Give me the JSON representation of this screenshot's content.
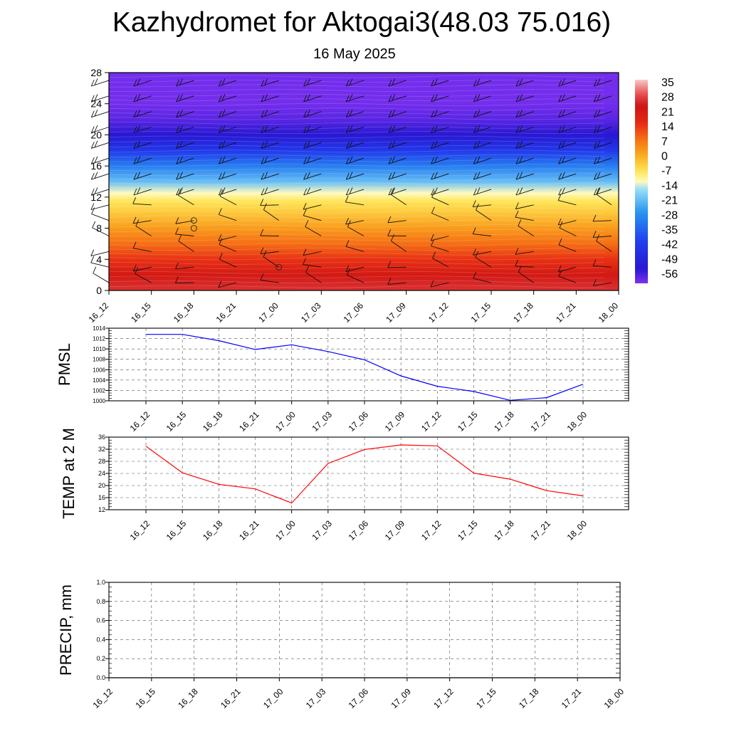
{
  "page": {
    "title": "Kazhydromet for Aktogai3(48.03 75.016)",
    "subtitle": "16 May 2025"
  },
  "chart_data": [
    {
      "type": "heatmap",
      "id": "cross-section",
      "x_ticks": [
        "16_12",
        "16_15",
        "16_18",
        "16_21",
        "17_00",
        "17_03",
        "17_06",
        "17_09",
        "17_12",
        "17_15",
        "17_18",
        "17_21",
        "18_00"
      ],
      "y_ticks": [
        0,
        4,
        8,
        12,
        16,
        20,
        24,
        28
      ],
      "ylim": [
        0,
        28
      ],
      "colorbar_labels": [
        "35",
        "28",
        "21",
        "14",
        "7",
        "0",
        "-7",
        "-14",
        "-21",
        "-28",
        "-35",
        "-42",
        "-49",
        "-56"
      ],
      "colorbar_range": [
        -63,
        37
      ],
      "colors": {
        "warm_dark": "#c81414",
        "warm": "#e83020",
        "orange": "#f8a020",
        "yellow": "#fff080",
        "cyan": "#40c0f0",
        "blue": "#2040f0",
        "deep_blue": "#1010d0",
        "violet": "#8030f0"
      },
      "profile": [
        {
          "h": 0,
          "t": 27
        },
        {
          "h": 2,
          "t": 22
        },
        {
          "h": 4,
          "t": 15
        },
        {
          "h": 6,
          "t": 8
        },
        {
          "h": 8,
          "t": 2
        },
        {
          "h": 10,
          "t": -4
        },
        {
          "h": 11.5,
          "t": -8
        },
        {
          "h": 12.5,
          "t": -13
        },
        {
          "h": 14,
          "t": -22
        },
        {
          "h": 16,
          "t": -32
        },
        {
          "h": 18,
          "t": -45
        },
        {
          "h": 20,
          "t": -56
        },
        {
          "h": 22,
          "t": -60
        },
        {
          "h": 24,
          "t": -62
        },
        {
          "h": 28,
          "t": -62
        }
      ],
      "wind_barbs": "present"
    },
    {
      "type": "line",
      "id": "pmsl",
      "ylabel": "PMSL",
      "x": [
        "16_12",
        "16_15",
        "16_18",
        "16_21",
        "17_00",
        "17_03",
        "17_06",
        "17_09",
        "17_12",
        "17_15",
        "17_18",
        "17_21",
        "18_00"
      ],
      "series": [
        {
          "values": [
            1012.8,
            1012.8,
            1011.6,
            1009.9,
            1010.8,
            1009.5,
            1007.9,
            1004.8,
            1002.8,
            1001.8,
            1000.1,
            1000.6,
            1003.2
          ],
          "color": "#0000ff"
        }
      ],
      "y_ticks": [
        1000,
        1002,
        1004,
        1006,
        1008,
        1010,
        1012,
        1014
      ],
      "ylim": [
        1000,
        1014
      ],
      "grid": true
    },
    {
      "type": "line",
      "id": "temp2m",
      "ylabel": "TEMP at 2 M",
      "x": [
        "16_12",
        "16_15",
        "16_18",
        "16_21",
        "17_00",
        "17_03",
        "17_06",
        "17_09",
        "17_12",
        "17_15",
        "17_18",
        "17_21",
        "18_00"
      ],
      "series": [
        {
          "values": [
            33.0,
            24.2,
            20.4,
            18.9,
            14.2,
            27.3,
            31.9,
            33.4,
            33.1,
            24.1,
            22.1,
            18.3,
            16.6
          ],
          "color": "#ff0000"
        }
      ],
      "y_ticks": [
        12,
        16,
        20,
        24,
        28,
        32,
        36
      ],
      "ylim": [
        12,
        36
      ],
      "grid": true
    },
    {
      "type": "line",
      "id": "precip",
      "ylabel": "PRECIP, mm",
      "x": [
        "16_12",
        "16_15",
        "16_18",
        "16_21",
        "17_00",
        "17_03",
        "17_06",
        "17_09",
        "17_12",
        "17_15",
        "17_18",
        "17_21",
        "18_00"
      ],
      "series": [
        {
          "values": [
            0,
            0,
            0,
            0,
            0,
            0,
            0,
            0,
            0,
            0,
            0,
            0,
            0
          ],
          "color": "#006400"
        }
      ],
      "y_ticks": [
        "0.0",
        "0.2",
        "0.4",
        "0.6",
        "0.8",
        "1.0"
      ],
      "ylim": [
        0,
        1
      ],
      "grid": true
    }
  ]
}
